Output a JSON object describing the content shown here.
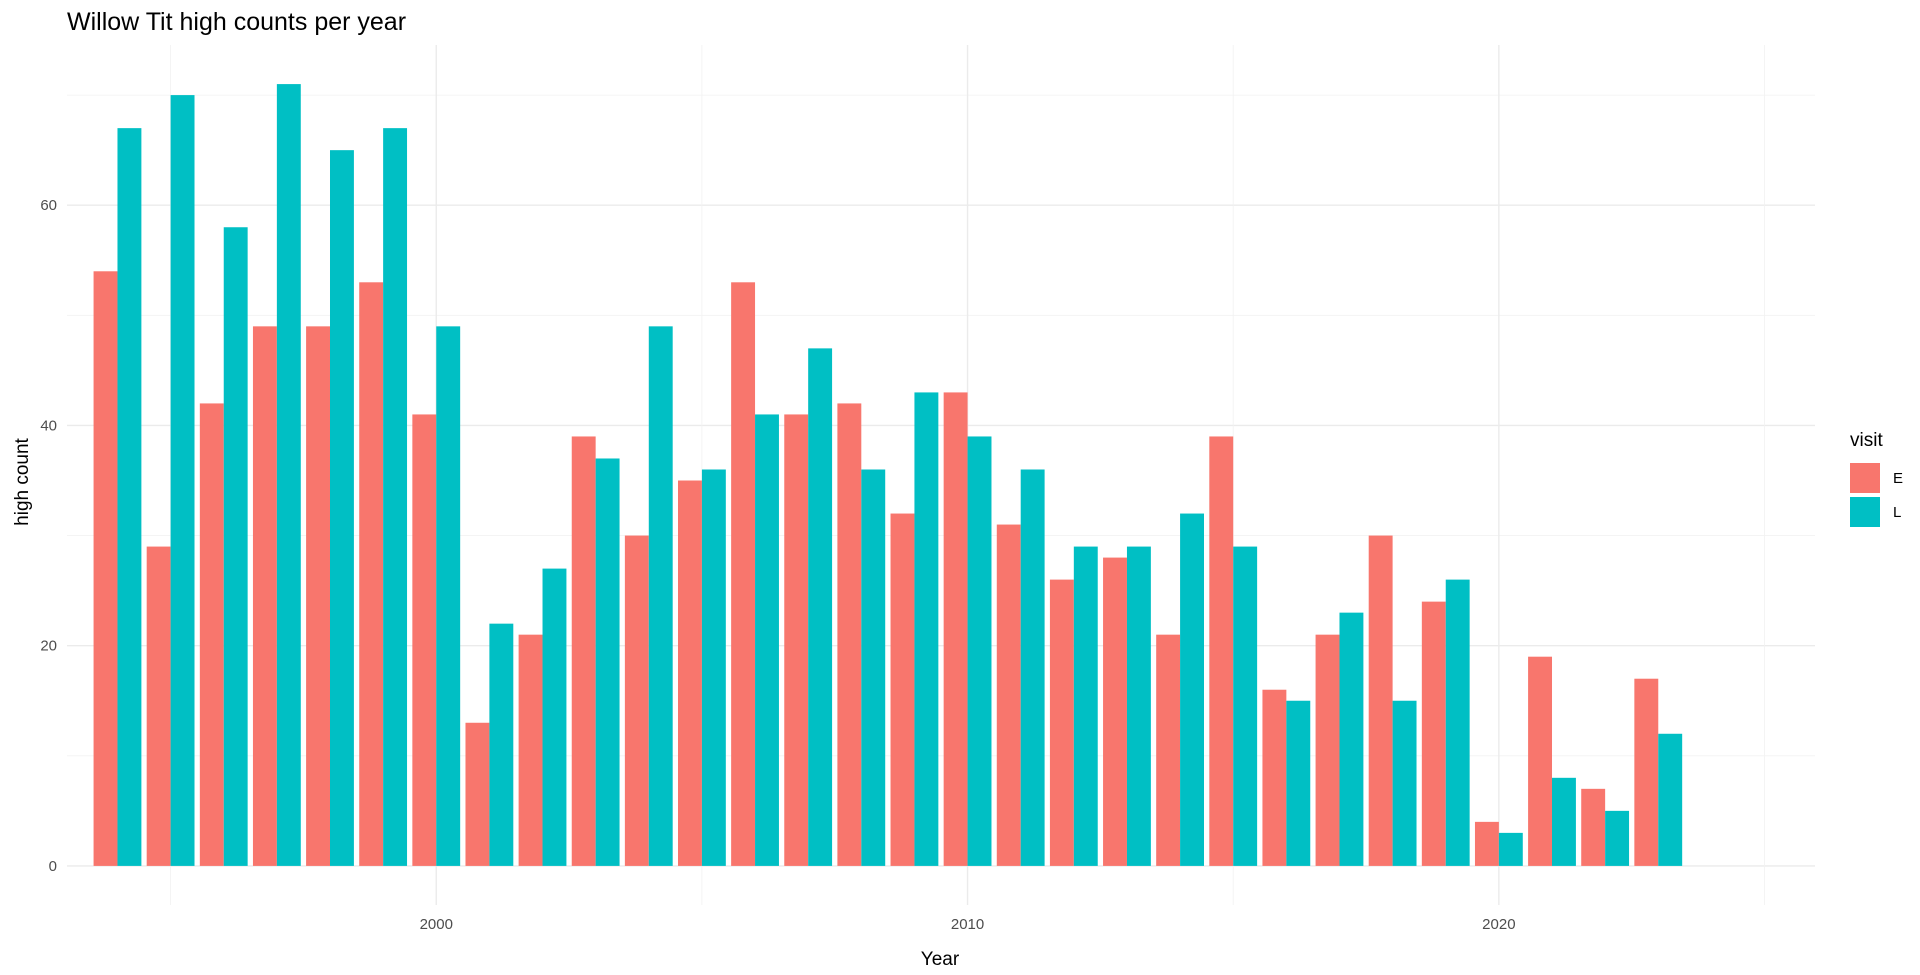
{
  "chart_data": {
    "type": "bar",
    "title": "Willow Tit high counts per year",
    "xlabel": "Year",
    "ylabel": "high count",
    "x": [
      1994,
      1995,
      1996,
      1997,
      1998,
      1999,
      2000,
      2001,
      2002,
      2003,
      2004,
      2005,
      2006,
      2007,
      2008,
      2009,
      2010,
      2011,
      2012,
      2013,
      2014,
      2015,
      2016,
      2017,
      2018,
      2019,
      2020,
      2021,
      2022,
      2023
    ],
    "series": [
      {
        "name": "E",
        "color": "#F8766D",
        "values": [
          54,
          29,
          42,
          49,
          49,
          53,
          41,
          13,
          21,
          39,
          30,
          35,
          53,
          41,
          42,
          32,
          43,
          31,
          26,
          28,
          21,
          39,
          16,
          21,
          30,
          24,
          4,
          19,
          7,
          17
        ]
      },
      {
        "name": "L",
        "color": "#00BFC4",
        "values": [
          67,
          70,
          58,
          71,
          65,
          67,
          49,
          22,
          27,
          37,
          49,
          36,
          41,
          47,
          36,
          43,
          39,
          36,
          29,
          29,
          32,
          29,
          15,
          23,
          15,
          26,
          3,
          8,
          5,
          12
        ]
      }
    ],
    "xlim": [
      1993.05,
      2025.95
    ],
    "ylim": [
      -3.55,
      74.55
    ],
    "x_ticks": [
      2000,
      2010,
      2020
    ],
    "y_ticks": [
      0,
      20,
      40,
      60
    ],
    "grid": true,
    "legend_title": "visit",
    "legend_position": "right"
  }
}
